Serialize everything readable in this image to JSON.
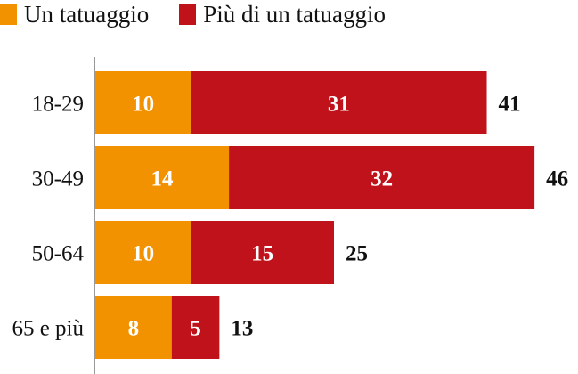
{
  "chart_data": {
    "type": "bar",
    "orientation": "horizontal",
    "stacked": true,
    "categories": [
      "18-29",
      "30-49",
      "50-64",
      "65 e più"
    ],
    "series": [
      {
        "name": "Un tatuaggio",
        "color": "#f39200",
        "values": [
          10,
          14,
          10,
          8
        ]
      },
      {
        "name": "Più di un tatuaggio",
        "color": "#c0121a",
        "values": [
          31,
          32,
          15,
          5
        ]
      }
    ],
    "totals": [
      41,
      46,
      25,
      13
    ],
    "legend_position": "top-left",
    "grid": false,
    "xlim": [
      0,
      50
    ]
  }
}
